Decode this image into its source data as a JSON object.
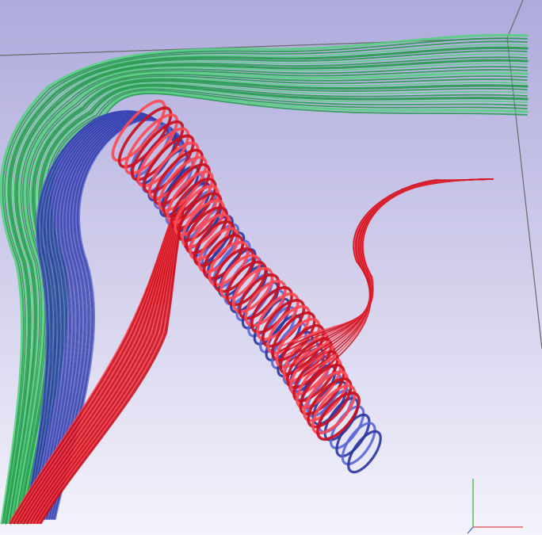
{
  "scene": {
    "background_top": "#aeaadc",
    "background_bottom": "#f4f3fb",
    "bounding_box_color": "#6a6a6a",
    "series": [
      {
        "color": "#1f9a45",
        "highlight": "#52d07e"
      },
      {
        "color": "#2a36a0",
        "highlight": "#5a66d6"
      },
      {
        "color": "#c8101e",
        "highlight": "#ff4a55"
      }
    ],
    "axes_triad": {
      "x_color": "#e04a4a",
      "y_color": "#3cb84a",
      "z_color": "#4a5ae0"
    }
  }
}
